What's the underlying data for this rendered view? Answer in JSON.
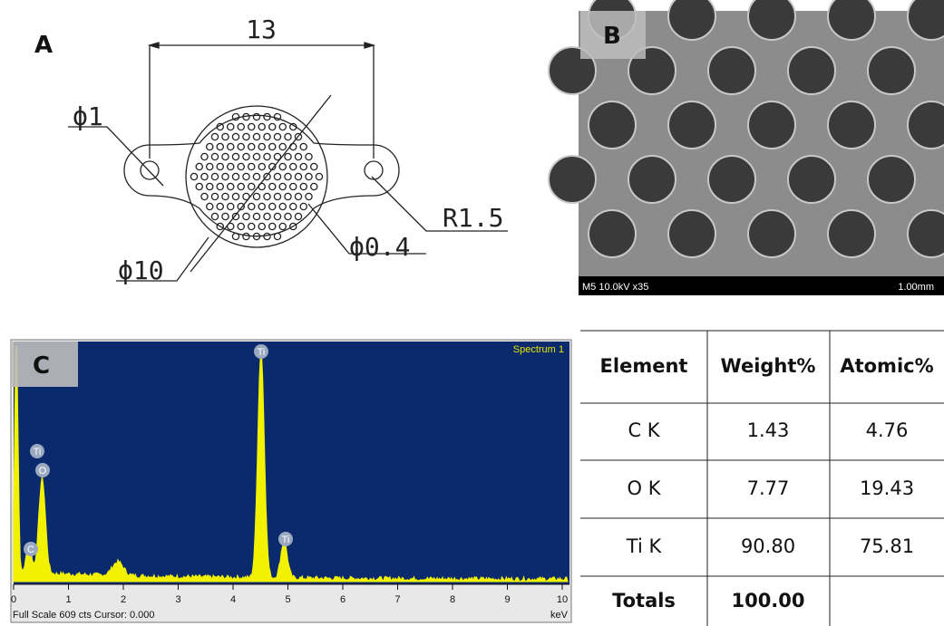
{
  "panels": {
    "a": {
      "label": "A",
      "dimension": "13",
      "hole_diameter": "ϕ1",
      "radius": "R1.5",
      "pore_diameter": "ϕ0.4",
      "disk_diameter": "ϕ10"
    },
    "b": {
      "label": "B",
      "info": "M5 10.0kV x35",
      "scale": "1.00mm"
    },
    "c": {
      "label": "C",
      "spectrum_name": "Spectrum 1",
      "x_tick_labels": [
        "0",
        "1",
        "2",
        "3",
        "4",
        "5",
        "6",
        "7",
        "8",
        "9",
        "10"
      ],
      "peak_labels": [
        "Ti",
        "O",
        "C",
        "Ti",
        "Ti"
      ],
      "footer": "Full Scale 609 cts Cursor: 0.000",
      "x_unit": "keV"
    }
  },
  "table": {
    "header": [
      "Element",
      "Weight%",
      "Atomic%"
    ],
    "rows": [
      [
        "C K",
        "1.43",
        "4.76"
      ],
      [
        "O K",
        "7.77",
        "19.43"
      ],
      [
        "Ti K",
        "90.80",
        "75.81"
      ],
      [
        "Totals",
        "100.00"
      ]
    ]
  }
}
